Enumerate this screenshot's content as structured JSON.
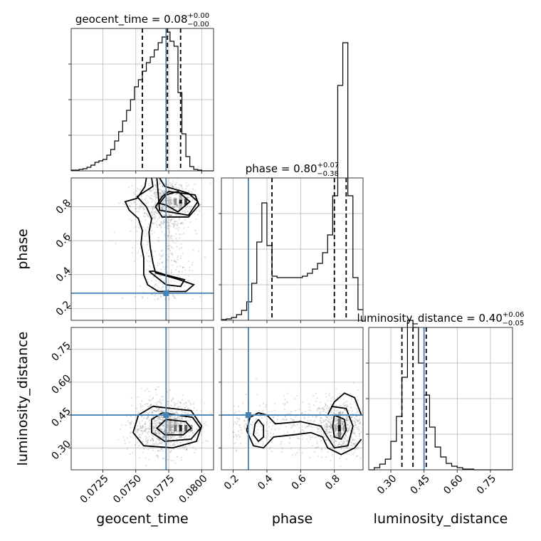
{
  "chart_data": {
    "type": "corner",
    "parameters": [
      {
        "key": "geocent_time",
        "label": "geocent_time",
        "title_main": "geocent_time = 0.08",
        "title_plus": "+0.00",
        "title_minus": "−0.00",
        "range": [
          0.0701,
          0.0809
        ],
        "ticks": [
          0.0725,
          0.075,
          0.0775,
          0.08
        ],
        "tick_labels": [
          "0.0725",
          "0.0750",
          "0.0775",
          "0.0800"
        ],
        "truth": 0.0773,
        "quantiles": [
          0.0755,
          0.0774,
          0.0784
        ],
        "hist_bins": [
          0.0701,
          0.0704,
          0.0707,
          0.071,
          0.0713,
          0.0716,
          0.0719,
          0.0722,
          0.0725,
          0.0728,
          0.0731,
          0.0734,
          0.0737,
          0.074,
          0.0743,
          0.0746,
          0.0749,
          0.0752,
          0.0755,
          0.0758,
          0.0761,
          0.0764,
          0.0767,
          0.077,
          0.0773,
          0.0776,
          0.0779,
          0.0782,
          0.0785,
          0.0788,
          0.0791,
          0.0794,
          0.0797,
          0.08,
          0.0803,
          0.0806,
          0.0809
        ],
        "hist_values": [
          1,
          1,
          2,
          3,
          5,
          8,
          12,
          14,
          16,
          22,
          30,
          42,
          55,
          70,
          85,
          100,
          118,
          128,
          140,
          152,
          160,
          170,
          180,
          188,
          195,
          182,
          175,
          110,
          52,
          20,
          6,
          2,
          1,
          0,
          0,
          0
        ]
      },
      {
        "key": "phase",
        "label": "phase",
        "title_main": "phase = 0.80",
        "title_plus": "+0.07",
        "title_minus": "−0.38",
        "range": [
          0.13,
          0.97
        ],
        "ticks": [
          0.2,
          0.4,
          0.6,
          0.8
        ],
        "tick_labels": [
          "0.2",
          "0.4",
          "0.6",
          "0.8"
        ],
        "truth": 0.29,
        "quantiles": [
          0.43,
          0.8,
          0.87
        ],
        "hist_bins": [
          0.13,
          0.16,
          0.19,
          0.22,
          0.25,
          0.28,
          0.31,
          0.34,
          0.37,
          0.4,
          0.43,
          0.46,
          0.49,
          0.52,
          0.55,
          0.58,
          0.61,
          0.64,
          0.67,
          0.7,
          0.73,
          0.76,
          0.79,
          0.82,
          0.85,
          0.88,
          0.91,
          0.94,
          0.97
        ],
        "hist_values": [
          1,
          2,
          4,
          8,
          14,
          26,
          52,
          110,
          165,
          105,
          62,
          60,
          60,
          60,
          60,
          60,
          62,
          66,
          72,
          80,
          95,
          120,
          175,
          330,
          390,
          175,
          60,
          15
        ]
      },
      {
        "key": "luminosity_distance",
        "label": "luminosity_distance",
        "title_main": "luminosity_distance = 0.40",
        "title_plus": "+0.06",
        "title_minus": "−0.05",
        "range": [
          0.2,
          0.85
        ],
        "ticks": [
          0.3,
          0.45,
          0.6,
          0.75
        ],
        "tick_labels": [
          "0.30",
          "0.45",
          "0.60",
          "0.75"
        ],
        "truth": 0.45,
        "quantiles": [
          0.35,
          0.4,
          0.46
        ],
        "hist_bins": [
          0.2,
          0.225,
          0.25,
          0.275,
          0.3,
          0.325,
          0.35,
          0.375,
          0.4,
          0.425,
          0.45,
          0.475,
          0.5,
          0.525,
          0.55,
          0.575,
          0.6,
          0.625,
          0.65,
          0.675,
          0.7,
          0.725,
          0.75,
          0.775,
          0.8,
          0.825,
          0.85
        ],
        "hist_values": [
          0,
          3,
          8,
          15,
          40,
          75,
          130,
          210,
          200,
          150,
          105,
          60,
          32,
          18,
          9,
          5,
          3,
          1,
          1,
          0,
          0,
          0,
          0,
          0,
          0,
          0
        ]
      }
    ],
    "hist_ylim": [
      0,
      200
    ],
    "hist_yticks": [
      50,
      100,
      150
    ],
    "grid": true,
    "colors": {
      "truth": "#4682b4",
      "lines": "#000000",
      "points": "#555555"
    },
    "contour_paths": {
      "phase_vs_geocent_time": [
        [
          [
            0.0773,
            0.81
          ],
          [
            0.0782,
            0.77
          ],
          [
            0.0791,
            0.83
          ],
          [
            0.0782,
            0.89
          ],
          [
            0.0773,
            0.87
          ],
          [
            0.0768,
            0.82
          ],
          [
            0.0773,
            0.81
          ]
        ],
        [
          [
            0.0766,
            0.97
          ],
          [
            0.0768,
            0.78
          ],
          [
            0.079,
            0.75
          ],
          [
            0.0797,
            0.83
          ],
          [
            0.079,
            0.88
          ],
          [
            0.0772,
            0.92
          ],
          [
            0.0768,
            0.97
          ]
        ],
        [
          [
            0.0762,
            0.97
          ],
          [
            0.0763,
            0.92
          ],
          [
            0.0757,
            0.89
          ],
          [
            0.0751,
            0.86
          ],
          [
            0.0758,
            0.8
          ],
          [
            0.0762,
            0.73
          ],
          [
            0.076,
            0.65
          ],
          [
            0.0761,
            0.56
          ],
          [
            0.0763,
            0.47
          ],
          [
            0.0765,
            0.41
          ],
          [
            0.0783,
            0.37
          ],
          [
            0.0794,
            0.34
          ],
          [
            0.0788,
            0.3
          ],
          [
            0.0767,
            0.3
          ],
          [
            0.0759,
            0.34
          ],
          [
            0.0756,
            0.4
          ],
          [
            0.0756,
            0.5
          ],
          [
            0.0754,
            0.58
          ],
          [
            0.0755,
            0.66
          ],
          [
            0.0752,
            0.73
          ],
          [
            0.0745,
            0.78
          ],
          [
            0.0742,
            0.83
          ],
          [
            0.0751,
            0.85
          ],
          [
            0.0757,
            0.92
          ],
          [
            0.0758,
            0.97
          ]
        ],
        [
          [
            0.076,
            0.42
          ],
          [
            0.0773,
            0.34
          ],
          [
            0.0784,
            0.33
          ],
          [
            0.0787,
            0.37
          ],
          [
            0.0772,
            0.4
          ],
          [
            0.0764,
            0.42
          ],
          [
            0.076,
            0.42
          ]
        ],
        [
          [
            0.0775,
            0.89
          ],
          [
            0.0795,
            0.87
          ],
          [
            0.0798,
            0.81
          ],
          [
            0.079,
            0.74
          ],
          [
            0.077,
            0.74
          ],
          [
            0.0765,
            0.8
          ],
          [
            0.077,
            0.86
          ],
          [
            0.0775,
            0.89
          ]
        ]
      ],
      "luminosity_distance_vs_geocent_time": [
        [
          [
            0.0773,
            0.43
          ],
          [
            0.0788,
            0.42
          ],
          [
            0.0792,
            0.39
          ],
          [
            0.0786,
            0.36
          ],
          [
            0.0772,
            0.36
          ],
          [
            0.0766,
            0.39
          ],
          [
            0.0773,
            0.43
          ]
        ],
        [
          [
            0.077,
            0.46
          ],
          [
            0.0793,
            0.44
          ],
          [
            0.0799,
            0.39
          ],
          [
            0.0792,
            0.34
          ],
          [
            0.0772,
            0.33
          ],
          [
            0.0762,
            0.37
          ],
          [
            0.0762,
            0.43
          ],
          [
            0.077,
            0.46
          ]
        ],
        [
          [
            0.0763,
            0.49
          ],
          [
            0.0792,
            0.47
          ],
          [
            0.08,
            0.4
          ],
          [
            0.0796,
            0.33
          ],
          [
            0.0778,
            0.3
          ],
          [
            0.0756,
            0.31
          ],
          [
            0.0748,
            0.37
          ],
          [
            0.0752,
            0.45
          ],
          [
            0.0763,
            0.49
          ]
        ]
      ],
      "luminosity_distance_vs_phase": [
        [
          [
            0.8,
            0.45
          ],
          [
            0.86,
            0.43
          ],
          [
            0.87,
            0.38
          ],
          [
            0.84,
            0.34
          ],
          [
            0.8,
            0.35
          ],
          [
            0.79,
            0.4
          ],
          [
            0.8,
            0.45
          ]
        ],
        [
          [
            0.78,
            0.49
          ],
          [
            0.87,
            0.48
          ],
          [
            0.91,
            0.4
          ],
          [
            0.88,
            0.31
          ],
          [
            0.8,
            0.3
          ],
          [
            0.75,
            0.36
          ],
          [
            0.72,
            0.4
          ],
          [
            0.6,
            0.42
          ],
          [
            0.45,
            0.41
          ],
          [
            0.4,
            0.45
          ],
          [
            0.35,
            0.46
          ],
          [
            0.3,
            0.44
          ],
          [
            0.28,
            0.38
          ],
          [
            0.32,
            0.31
          ],
          [
            0.38,
            0.3
          ],
          [
            0.44,
            0.35
          ],
          [
            0.56,
            0.36
          ],
          [
            0.66,
            0.37
          ],
          [
            0.73,
            0.35
          ],
          [
            0.76,
            0.3
          ],
          [
            0.84,
            0.27
          ],
          [
            0.92,
            0.3
          ],
          [
            0.96,
            0.34
          ]
        ],
        [
          [
            0.96,
            0.45
          ],
          [
            0.92,
            0.53
          ],
          [
            0.86,
            0.55
          ],
          [
            0.8,
            0.51
          ],
          [
            0.76,
            0.45
          ]
        ],
        [
          [
            0.35,
            0.43
          ],
          [
            0.38,
            0.4
          ],
          [
            0.38,
            0.35
          ],
          [
            0.35,
            0.33
          ],
          [
            0.32,
            0.36
          ],
          [
            0.33,
            0.41
          ],
          [
            0.35,
            0.43
          ]
        ]
      ]
    },
    "density_cells": {
      "phase_vs_geocent_time": [
        [
          0.078,
          0.83,
          0.45
        ],
        [
          0.0784,
          0.83,
          0.9
        ],
        [
          0.0788,
          0.83,
          0.75
        ],
        [
          0.0776,
          0.83,
          0.25
        ],
        [
          0.0784,
          0.86,
          0.3
        ],
        [
          0.0784,
          0.8,
          0.3
        ]
      ],
      "luminosity_distance_vs_geocent_time": [
        [
          0.078,
          0.39,
          0.55
        ],
        [
          0.0784,
          0.39,
          0.85
        ],
        [
          0.0788,
          0.39,
          0.65
        ],
        [
          0.0776,
          0.39,
          0.35
        ],
        [
          0.0776,
          0.42,
          0.3
        ],
        [
          0.078,
          0.42,
          0.3
        ],
        [
          0.0784,
          0.36,
          0.25
        ],
        [
          0.0792,
          0.39,
          0.4
        ]
      ],
      "luminosity_distance_vs_phase": [
        [
          0.83,
          0.39,
          0.95
        ],
        [
          0.83,
          0.42,
          0.55
        ],
        [
          0.83,
          0.36,
          0.55
        ],
        [
          0.83,
          0.45,
          0.3
        ],
        [
          0.86,
          0.39,
          0.35
        ],
        [
          0.8,
          0.39,
          0.3
        ]
      ]
    }
  }
}
